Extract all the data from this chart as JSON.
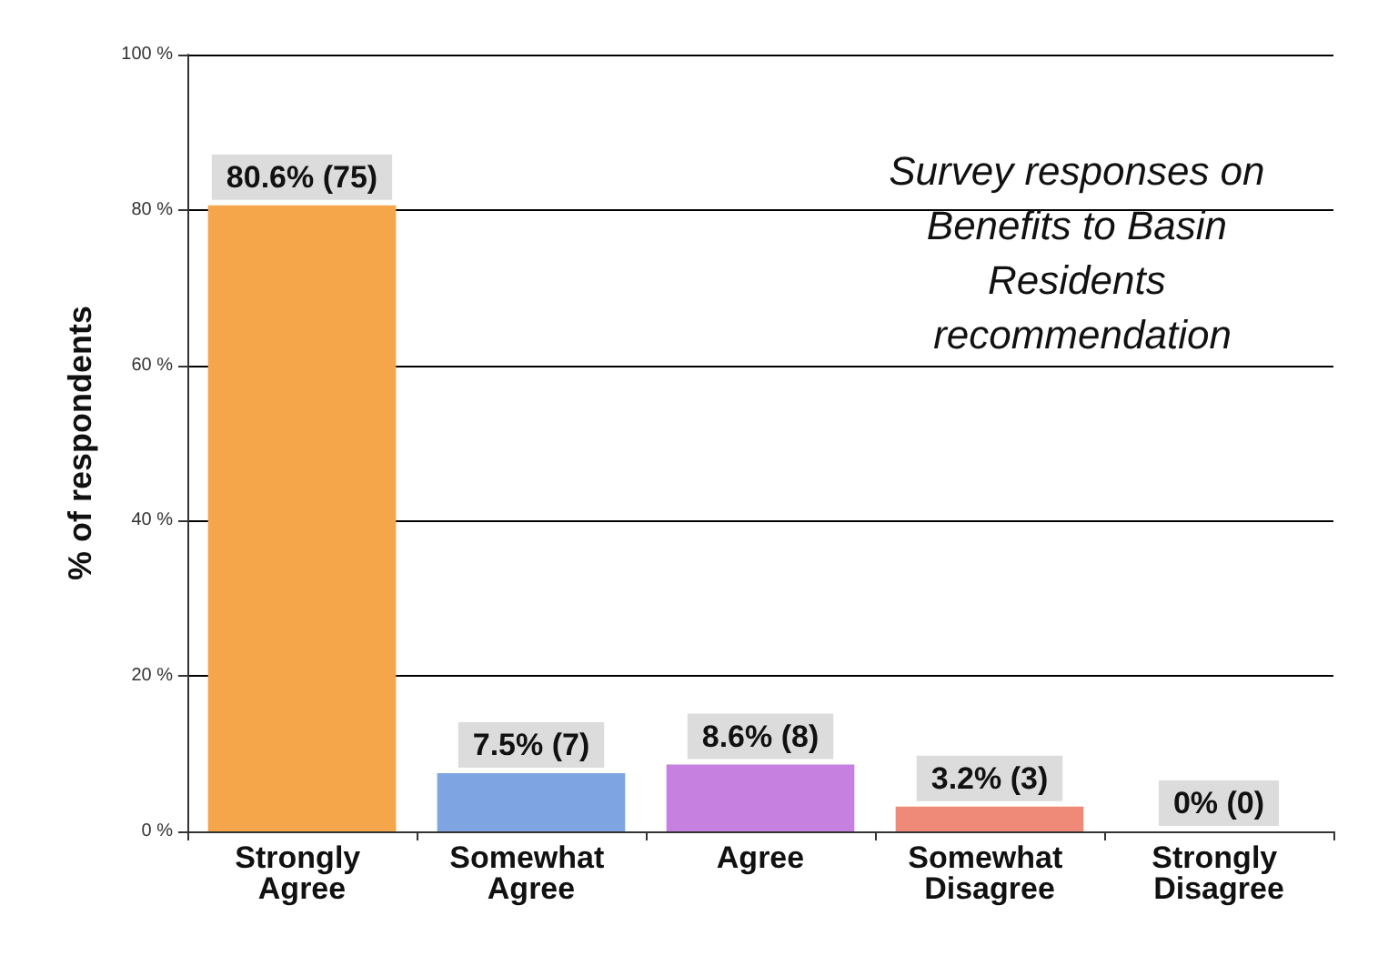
{
  "chart_data": {
    "type": "bar",
    "title": "Survey responses on Benefits to Basin Residents recommendation",
    "ylabel": "% of respondents",
    "categories": [
      "Strongly Agree",
      "Somewhat Agree",
      "Agree",
      "Somewhat Disagree",
      "Strongly Disagree"
    ],
    "values": [
      80.6,
      7.5,
      8.6,
      3.2,
      0
    ],
    "colors": [
      "#f5a54a",
      "#7ea4e2",
      "#c680e0",
      "#f08a78",
      "#d9d9d9"
    ],
    "value_labels": [
      "80.6% (75)",
      "7.5% (7)",
      "8.6% (8)",
      "3.2% (3)",
      "0% (0)"
    ],
    "ylim": [
      0,
      100
    ],
    "yticks": [
      {
        "value": 0,
        "label": "0 %"
      },
      {
        "value": 20,
        "label": "20 %"
      },
      {
        "value": 40,
        "label": "40 %"
      },
      {
        "value": 60,
        "label": "60 %"
      },
      {
        "value": 80,
        "label": "80 %"
      },
      {
        "value": 100,
        "label": "100 %"
      }
    ],
    "grid": "y"
  }
}
